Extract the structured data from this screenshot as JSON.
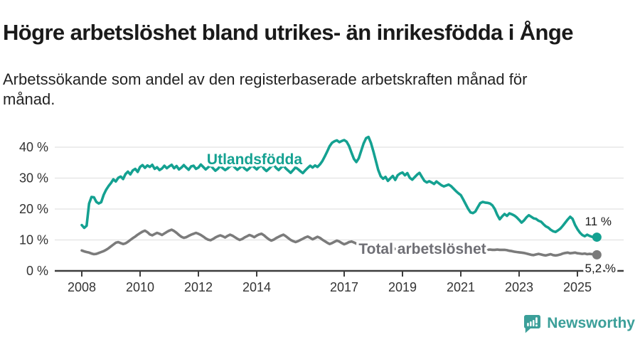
{
  "header": {
    "title": "Högre arbetslöshet bland utrikes- än inrikesfödda i Ånge",
    "subtitle_lines": [
      "Arbetssökande som andel av den registerbaserade arbetskraften månad för",
      "månad."
    ]
  },
  "footer": {
    "brand": "Newsworthy",
    "brand_color": "#3b9f99"
  },
  "chart_data": {
    "type": "line",
    "title": "Högre arbetslöshet bland utrikes- än inrikesfödda i Ånge",
    "subtitle": "Arbetssökande som andel av den registerbaserade arbetskraften månad för månad.",
    "x_start_year": 2008,
    "x_step_months": 1,
    "x_axis": {
      "ticks": [
        2008,
        2010,
        2012,
        2014,
        2017,
        2019,
        2021,
        2023,
        2025
      ],
      "tick_labels": [
        "2008",
        "2010",
        "2012",
        "2014",
        "2017",
        "2019",
        "2021",
        "2023",
        "2025"
      ]
    },
    "y_axis": {
      "ticks": [
        0,
        10,
        20,
        30,
        40
      ],
      "tick_labels": [
        "0 %",
        "10 %",
        "20 %",
        "30 %",
        "40 %"
      ],
      "range": [
        0,
        45
      ],
      "grid": true
    },
    "colors": {
      "grid": "#e2e2e2",
      "axis": "#3d3d3d",
      "tick_text": "#333333",
      "annotation": "#1a1a1a"
    },
    "series": [
      {
        "name": "Utlandsfödda",
        "color": "#14a191",
        "label_color": "#14a191",
        "end_label": "11 %",
        "end_value": 11,
        "values": [
          14.8,
          13.9,
          14.6,
          21.8,
          23.9,
          23.8,
          22.3,
          21.8,
          22.2,
          24.6,
          26.2,
          27.4,
          28.4,
          29.6,
          28.9,
          30.1,
          30.5,
          29.7,
          31.3,
          32.1,
          31.2,
          32.5,
          33.0,
          32.0,
          33.6,
          34.2,
          33.3,
          34.1,
          33.6,
          34.3,
          33.0,
          33.5,
          32.6,
          33.1,
          34.0,
          33.2,
          33.8,
          34.3,
          33.2,
          33.9,
          32.8,
          33.4,
          34.2,
          33.4,
          32.7,
          33.8,
          34.0,
          33.0,
          33.4,
          34.4,
          33.6,
          32.8,
          33.5,
          34.1,
          33.2,
          32.4,
          33.0,
          33.9,
          33.2,
          32.6,
          33.1,
          33.8,
          34.3,
          33.4,
          32.7,
          33.3,
          34.0,
          33.1,
          32.5,
          33.2,
          34.1,
          33.5,
          32.8,
          33.6,
          34.2,
          33.0,
          32.3,
          33.0,
          33.8,
          34.3,
          33.3,
          32.6,
          33.4,
          34.0,
          33.1,
          32.4,
          31.7,
          32.6,
          33.5,
          32.9,
          32.2,
          31.6,
          32.5,
          33.3,
          34.0,
          33.4,
          34.1,
          33.6,
          34.4,
          35.5,
          37.0,
          38.6,
          40.3,
          41.4,
          41.9,
          42.2,
          41.6,
          42.0,
          42.3,
          41.8,
          40.4,
          38.2,
          36.2,
          35.2,
          36.4,
          38.8,
          41.2,
          42.9,
          43.3,
          41.4,
          38.7,
          35.7,
          32.7,
          30.6,
          29.8,
          30.4,
          29.1,
          29.9,
          30.7,
          29.4,
          30.9,
          31.5,
          31.8,
          30.9,
          31.6,
          30.1,
          29.5,
          30.3,
          31.1,
          31.7,
          30.4,
          29.1,
          28.6,
          29.0,
          28.6,
          28.1,
          28.9,
          28.3,
          27.7,
          27.3,
          27.6,
          27.9,
          27.4,
          26.6,
          25.8,
          25.1,
          24.5,
          23.1,
          21.6,
          20.1,
          18.9,
          18.7,
          19.2,
          20.6,
          21.9,
          22.3,
          22.1,
          22.0,
          21.8,
          21.2,
          20.0,
          18.1,
          16.7,
          17.6,
          18.4,
          17.8,
          18.6,
          18.3,
          17.9,
          17.3,
          16.5,
          15.6,
          16.3,
          17.3,
          18.0,
          17.5,
          17.0,
          16.8,
          16.2,
          15.9,
          15.1,
          14.4,
          14.0,
          13.3,
          12.8,
          12.6,
          13.1,
          13.7,
          14.6,
          15.6,
          16.6,
          17.5,
          16.8,
          14.9,
          13.5,
          12.4,
          11.6,
          11.2,
          11.7,
          11.3,
          11.0,
          10.8,
          10.9
        ]
      },
      {
        "name": "Total arbetslöshet",
        "color": "#7b7b7b",
        "label_color": "#6f6f75",
        "end_label": "5,2 %",
        "end_value": 5.2,
        "values": [
          6.6,
          6.3,
          6.1,
          5.9,
          5.6,
          5.4,
          5.5,
          5.8,
          6.1,
          6.4,
          6.8,
          7.3,
          7.9,
          8.5,
          9.1,
          9.3,
          9.0,
          8.7,
          8.9,
          9.4,
          10.0,
          10.6,
          11.1,
          11.7,
          12.2,
          12.7,
          13.0,
          12.5,
          11.8,
          11.5,
          11.9,
          12.3,
          12.0,
          11.6,
          12.1,
          12.6,
          13.0,
          13.3,
          12.9,
          12.3,
          11.6,
          11.0,
          10.7,
          10.9,
          11.3,
          11.7,
          12.0,
          12.3,
          12.0,
          11.6,
          11.1,
          10.5,
          10.1,
          9.9,
          10.3,
          10.8,
          11.2,
          11.5,
          11.2,
          10.8,
          11.3,
          11.7,
          11.4,
          10.9,
          10.4,
          10.0,
          10.3,
          10.8,
          11.2,
          11.6,
          11.3,
          10.9,
          11.4,
          11.8,
          12.0,
          11.5,
          10.8,
          10.2,
          9.8,
          10.1,
          10.6,
          11.0,
          11.4,
          11.7,
          11.2,
          10.6,
          10.0,
          9.6,
          9.3,
          9.6,
          10.0,
          10.4,
          10.8,
          11.1,
          10.7,
          10.2,
          10.6,
          11.0,
          10.7,
          10.1,
          9.6,
          9.1,
          8.7,
          9.0,
          9.4,
          9.8,
          9.5,
          9.0,
          8.6,
          8.9,
          9.3,
          9.5,
          9.2,
          8.8,
          8.5,
          8.2,
          8.0,
          7.8,
          7.6,
          7.8,
          8.0,
          7.8,
          7.5,
          7.2,
          7.0,
          6.8,
          6.9,
          7.1,
          7.3,
          7.1,
          6.9,
          6.7,
          6.8,
          7.0,
          7.2,
          7.0,
          6.8,
          6.6,
          6.7,
          6.9,
          7.1,
          7.0,
          6.8,
          6.9,
          7.0,
          7.2,
          7.5,
          7.8,
          7.6,
          7.4,
          7.2,
          7.0,
          6.9,
          6.8,
          6.9,
          7.0,
          7.1,
          7.0,
          6.9,
          6.8,
          6.9,
          6.8,
          6.8,
          6.9,
          6.8,
          6.8,
          6.9,
          6.8,
          6.9,
          6.8,
          6.8,
          6.9,
          6.8,
          6.8,
          6.8,
          6.7,
          6.5,
          6.4,
          6.2,
          6.1,
          6.0,
          5.9,
          5.8,
          5.6,
          5.4,
          5.2,
          5.1,
          5.3,
          5.5,
          5.3,
          5.1,
          5.0,
          5.2,
          5.4,
          5.1,
          5.0,
          5.1,
          5.3,
          5.6,
          5.8,
          5.9,
          5.7,
          5.8,
          5.9,
          5.7,
          5.6,
          5.5,
          5.6,
          5.4,
          5.5,
          5.4,
          5.3,
          5.2
        ]
      }
    ],
    "legend_position": "inline-labels"
  }
}
